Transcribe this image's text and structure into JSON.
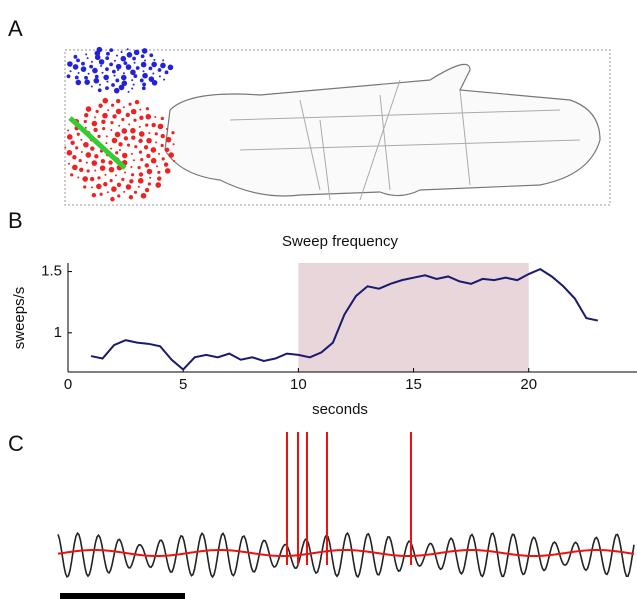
{
  "panels": [
    "A",
    "B",
    "C"
  ],
  "chart_data": {
    "type": "line",
    "title": "Sweep frequency",
    "x_label": "seconds",
    "y_label": "sweeps/s",
    "x": [
      1,
      1.5,
      2,
      2.5,
      3,
      3.5,
      4,
      4.5,
      5,
      5.5,
      6,
      6.5,
      7,
      7.5,
      8,
      8.5,
      9,
      9.5,
      10,
      10.5,
      11,
      11.5,
      12,
      12.5,
      13,
      13.5,
      14,
      14.5,
      15,
      15.5,
      16,
      16.5,
      17,
      17.5,
      18,
      18.5,
      19,
      19.5,
      20,
      20.5,
      21,
      21.5,
      22,
      22.5,
      23
    ],
    "series": [
      {
        "color": "#1a1a6e",
        "values": [
          0.81,
          0.79,
          0.9,
          0.94,
          0.92,
          0.91,
          0.89,
          0.78,
          0.7,
          0.8,
          0.82,
          0.8,
          0.83,
          0.78,
          0.8,
          0.77,
          0.79,
          0.83,
          0.82,
          0.8,
          0.84,
          0.92,
          1.15,
          1.3,
          1.38,
          1.36,
          1.4,
          1.43,
          1.45,
          1.47,
          1.44,
          1.46,
          1.42,
          1.4,
          1.44,
          1.43,
          1.45,
          1.43,
          1.48,
          1.52,
          1.46,
          1.38,
          1.28,
          1.12,
          1.1
        ]
      }
    ],
    "highlight": [
      10,
      20
    ],
    "highlight_color": "#e8d6da",
    "xlim": [
      0,
      24.7
    ],
    "ylim": [
      0.68,
      1.57
    ],
    "xticks": [
      0,
      5,
      10,
      15,
      20
    ],
    "yticks": [
      1,
      1.5
    ]
  }
}
